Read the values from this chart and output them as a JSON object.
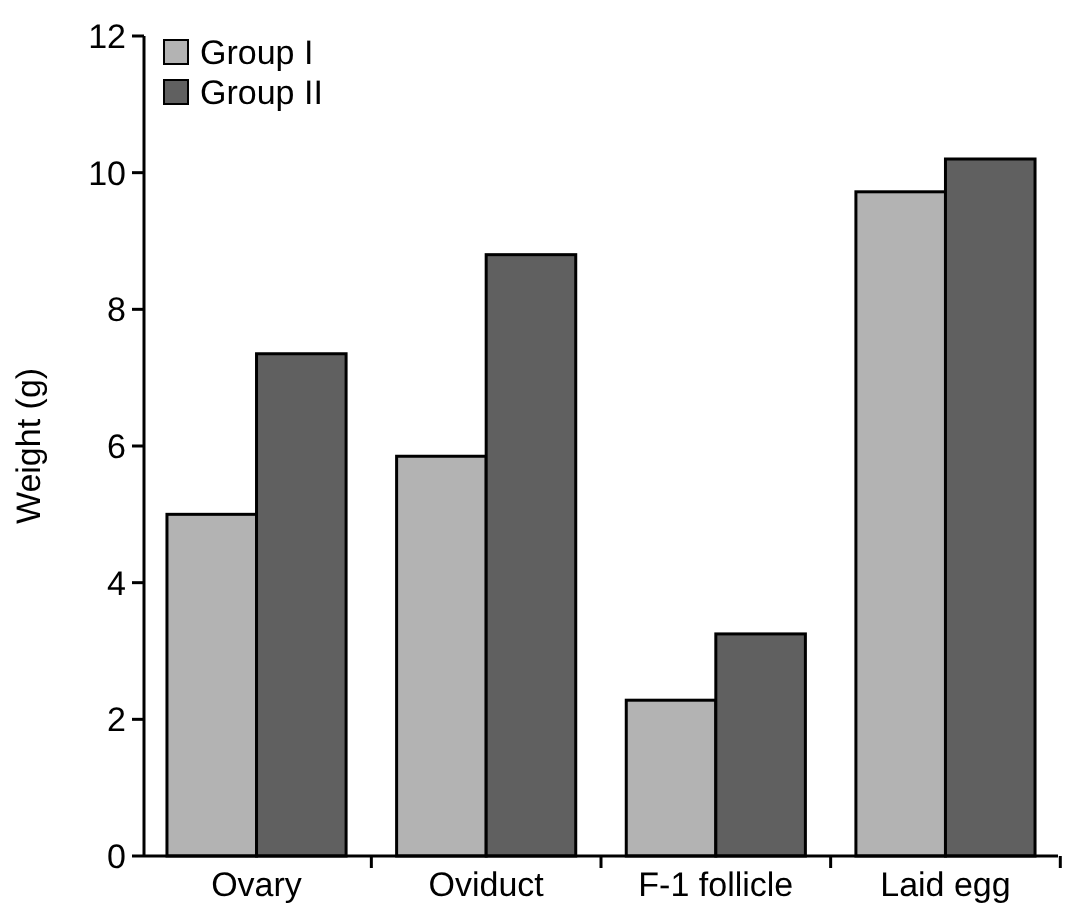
{
  "chart_data": {
    "type": "bar",
    "ylabel": "Weight (g)",
    "categories": [
      "Ovary",
      "Oviduct",
      "F-1 follicle",
      "Laid egg"
    ],
    "series": [
      {
        "name": "Group I",
        "color": "#b3b3b3",
        "values": [
          5.0,
          5.85,
          2.28,
          9.72
        ]
      },
      {
        "name": "Group II",
        "color": "#606060",
        "values": [
          7.35,
          8.8,
          3.25,
          10.2
        ]
      }
    ],
    "ylim": [
      0,
      12
    ],
    "yticks": [
      0,
      2,
      4,
      6,
      8,
      10,
      12
    ],
    "legend": "top left",
    "grid": false
  }
}
